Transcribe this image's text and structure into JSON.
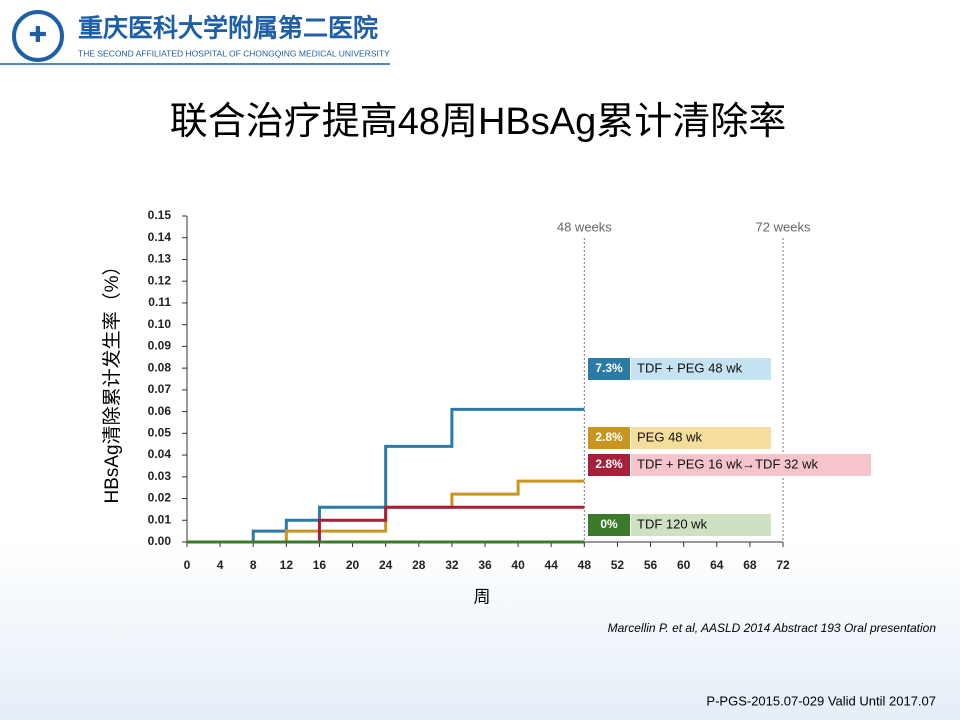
{
  "header": {
    "name_cn": "重庆医科大学附属第二医院",
    "name_en": "THE SECOND AFFILIATED HOSPITAL OF CHONGQING MEDICAL UNIVERSITY"
  },
  "chart_data": {
    "type": "step",
    "title": "联合治疗提高48周HBsAg累计清除率",
    "x_label": "周",
    "y_label": "HBsAg清除累计发生率（%）",
    "x": [
      0,
      8,
      12,
      16,
      24,
      32,
      40,
      48
    ],
    "series": [
      {
        "name": "TDF + PEG 48 wk",
        "badge": "7.3%",
        "color": "#2b7ba6",
        "values": [
          0,
          0.005,
          0.01,
          0.016,
          0.044,
          0.061,
          0.061,
          0.061
        ]
      },
      {
        "name": "PEG 48 wk",
        "badge": "2.8%",
        "color": "#c8961e",
        "values": [
          0,
          0,
          0.005,
          0.005,
          0.016,
          0.022,
          0.028,
          0.028
        ]
      },
      {
        "name": "TDF + PEG 16 wk→TDF 32 wk",
        "badge": "2.8%",
        "color": "#a5203a",
        "values": [
          0,
          0,
          0,
          0.01,
          0.016,
          0.016,
          0.016,
          0.016
        ]
      },
      {
        "name": "TDF 120 wk",
        "badge": "0%",
        "color": "#3b7a2a",
        "values": [
          0,
          0,
          0,
          0,
          0,
          0,
          0,
          0
        ]
      }
    ],
    "xlim": [
      0,
      72
    ],
    "xticks": [
      0,
      4,
      8,
      12,
      16,
      20,
      24,
      28,
      32,
      36,
      40,
      44,
      48,
      52,
      56,
      60,
      64,
      68,
      72
    ],
    "ylim": [
      0,
      0.15
    ],
    "yticks": [
      {
        "value": 0,
        "label": "0.00"
      },
      0.01,
      0.02,
      0.03,
      0.04,
      0.05,
      0.06,
      0.07,
      0.08,
      0.09,
      {
        "value": 0.1,
        "label": "0.10"
      },
      0.11,
      0.12,
      0.13,
      0.14,
      0.15
    ],
    "annotations": [
      {
        "x": 48,
        "label": "48 weeks"
      },
      {
        "x": 72,
        "label": "72 weeks"
      }
    ],
    "citation": "Marcellin P. et al, AASLD 2014 Abstract 193 Oral presentation"
  },
  "footer": "P-PGS-2015.07-029 Valid Until 2017.07"
}
